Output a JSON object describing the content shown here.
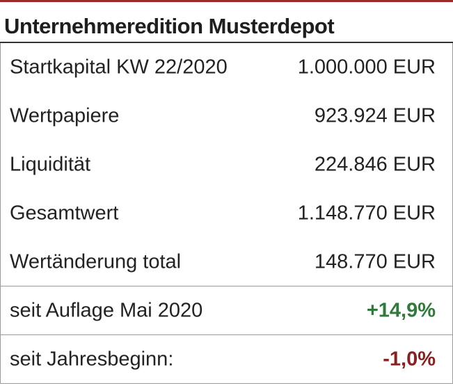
{
  "title": "Unternehmeredition Musterdepot",
  "rows": [
    {
      "label": "Startkapital KW 22/2020",
      "value": "1.000.000 EUR"
    },
    {
      "label": "Wertpapiere",
      "value": "923.924 EUR"
    },
    {
      "label": "Liquidität",
      "value": "224.846 EUR"
    },
    {
      "label": "Gesamtwert",
      "value": "1.148.770 EUR"
    },
    {
      "label": "Wertänderung total",
      "value": "148.770 EUR"
    },
    {
      "label": "seit Auflage Mai 2020",
      "value": "+14,9%"
    },
    {
      "label": "seit Jahresbeginn:",
      "value": "-1,0%"
    }
  ],
  "colors": {
    "accent_rule": "#9b2a2a",
    "positive": "#2f7a3a",
    "negative": "#8b1f1f"
  }
}
